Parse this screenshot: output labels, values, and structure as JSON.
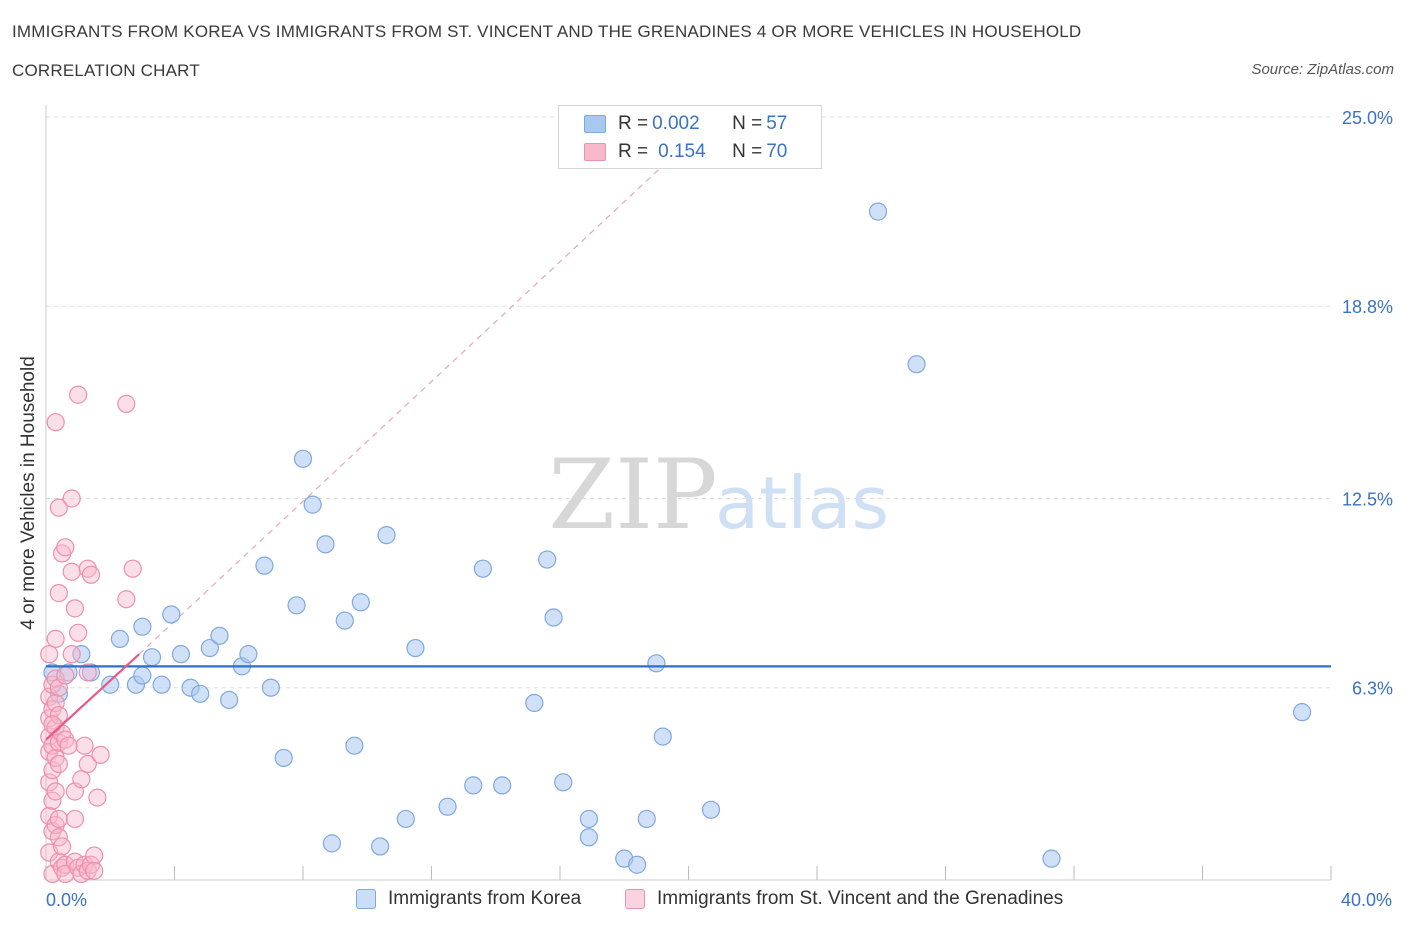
{
  "header": {
    "title": "IMMIGRANTS FROM KOREA VS IMMIGRANTS FROM ST. VINCENT AND THE GRENADINES 4 OR MORE VEHICLES IN HOUSEHOLD",
    "subtitle": "CORRELATION CHART",
    "source": "Source: ZipAtlas.com"
  },
  "watermark": {
    "zip": "ZIP",
    "atlas": "atlas"
  },
  "legend_stats": {
    "korea": {
      "r_label": "R = ",
      "r_value": "0.002",
      "n_label": "N = ",
      "n_value": "57"
    },
    "stvincent": {
      "r_label": "R = ",
      "r_value": "0.154",
      "n_label": "N = ",
      "n_value": "70"
    }
  },
  "colors": {
    "korea_fill": "#a9c8f0",
    "korea_stroke": "#7fa8de",
    "korea_line": "#2f6fc6",
    "stvincent_fill": "#f7b8cb",
    "stvincent_stroke": "#ee8fac",
    "stvincent_line": "#e8588a",
    "grid": "#dddddd",
    "axis_text": "#3a72c4"
  },
  "chart_data": {
    "type": "scatter",
    "title": "IMMIGRANTS FROM KOREA VS IMMIGRANTS FROM ST. VINCENT AND THE GRENADINES 4 OR MORE VEHICLES IN HOUSEHOLD",
    "xlabel": "",
    "ylabel": "4 or more Vehicles in Household",
    "xlim": [
      0,
      40
    ],
    "ylim": [
      0,
      25
    ],
    "x_tick_labels": [
      "0.0%",
      "40.0%"
    ],
    "y_ticks": [
      6.3,
      12.5,
      18.8,
      25.0
    ],
    "y_tick_labels": [
      "6.3%",
      "12.5%",
      "18.8%",
      "25.0%"
    ],
    "grid": true,
    "legend_position": "bottom",
    "series": [
      {
        "name": "Immigrants from Korea",
        "trend": {
          "x": [
            0,
            40
          ],
          "y": [
            7.0,
            7.0
          ]
        },
        "points": [
          [
            0.2,
            6.8
          ],
          [
            0.4,
            6.1
          ],
          [
            0.7,
            6.8
          ],
          [
            1.1,
            7.4
          ],
          [
            1.4,
            6.8
          ],
          [
            2.0,
            6.4
          ],
          [
            2.3,
            7.9
          ],
          [
            2.8,
            6.4
          ],
          [
            3.0,
            6.7
          ],
          [
            3.0,
            8.3
          ],
          [
            3.3,
            7.3
          ],
          [
            3.6,
            6.4
          ],
          [
            3.9,
            8.7
          ],
          [
            4.2,
            7.4
          ],
          [
            4.5,
            6.3
          ],
          [
            4.8,
            6.1
          ],
          [
            5.1,
            7.6
          ],
          [
            5.4,
            8.0
          ],
          [
            5.7,
            5.9
          ],
          [
            6.1,
            7.0
          ],
          [
            6.3,
            7.4
          ],
          [
            6.8,
            10.3
          ],
          [
            7.0,
            6.3
          ],
          [
            7.4,
            4.0
          ],
          [
            7.8,
            9.0
          ],
          [
            8.0,
            13.8
          ],
          [
            8.3,
            12.3
          ],
          [
            8.7,
            11.0
          ],
          [
            8.9,
            1.2
          ],
          [
            9.3,
            8.5
          ],
          [
            9.6,
            4.4
          ],
          [
            9.8,
            9.1
          ],
          [
            10.4,
            1.1
          ],
          [
            10.6,
            11.3
          ],
          [
            11.2,
            2.0
          ],
          [
            11.5,
            7.6
          ],
          [
            12.5,
            2.4
          ],
          [
            13.3,
            3.1
          ],
          [
            13.6,
            10.2
          ],
          [
            14.2,
            3.1
          ],
          [
            15.2,
            5.8
          ],
          [
            15.6,
            10.5
          ],
          [
            15.8,
            8.6
          ],
          [
            16.1,
            3.2
          ],
          [
            16.9,
            1.4
          ],
          [
            16.9,
            2.0
          ],
          [
            17.5,
            24.4
          ],
          [
            18.0,
            0.7
          ],
          [
            18.4,
            0.5
          ],
          [
            18.7,
            2.0
          ],
          [
            19.0,
            7.1
          ],
          [
            19.2,
            4.7
          ],
          [
            20.7,
            2.3
          ],
          [
            25.9,
            21.9
          ],
          [
            27.1,
            16.9
          ],
          [
            31.3,
            0.7
          ],
          [
            39.1,
            5.5
          ]
        ]
      },
      {
        "name": "Immigrants from St. Vincent and the Grenadines",
        "trend": {
          "x": [
            0,
            2.9
          ],
          "y": [
            4.6,
            7.4
          ]
        },
        "trend_dashed": {
          "x": [
            2.9,
            19.3
          ],
          "y": [
            7.4,
            23.5
          ]
        },
        "points": [
          [
            0.1,
            7.4
          ],
          [
            0.1,
            6.0
          ],
          [
            0.1,
            5.3
          ],
          [
            0.1,
            4.7
          ],
          [
            0.1,
            4.2
          ],
          [
            0.1,
            3.2
          ],
          [
            0.1,
            2.1
          ],
          [
            0.1,
            0.9
          ],
          [
            0.2,
            6.4
          ],
          [
            0.2,
            5.6
          ],
          [
            0.2,
            4.4
          ],
          [
            0.2,
            3.6
          ],
          [
            0.2,
            2.6
          ],
          [
            0.2,
            1.6
          ],
          [
            0.2,
            0.2
          ],
          [
            0.3,
            7.9
          ],
          [
            0.3,
            6.6
          ],
          [
            0.3,
            5.8
          ],
          [
            0.3,
            5.0
          ],
          [
            0.3,
            4.0
          ],
          [
            0.3,
            2.9
          ],
          [
            0.3,
            1.8
          ],
          [
            0.3,
            15.0
          ],
          [
            0.4,
            12.2
          ],
          [
            0.4,
            9.4
          ],
          [
            0.4,
            6.3
          ],
          [
            0.4,
            5.4
          ],
          [
            0.4,
            4.5
          ],
          [
            0.4,
            3.8
          ],
          [
            0.4,
            2.0
          ],
          [
            0.4,
            1.4
          ],
          [
            0.4,
            0.6
          ],
          [
            0.5,
            10.7
          ],
          [
            0.5,
            4.8
          ],
          [
            0.5,
            1.1
          ],
          [
            0.5,
            0.4
          ],
          [
            0.6,
            10.9
          ],
          [
            0.6,
            6.7
          ],
          [
            0.6,
            4.6
          ],
          [
            0.6,
            0.5
          ],
          [
            0.6,
            0.2
          ],
          [
            0.8,
            12.5
          ],
          [
            0.8,
            10.1
          ],
          [
            0.8,
            7.4
          ],
          [
            0.9,
            8.9
          ],
          [
            0.9,
            2.9
          ],
          [
            0.9,
            0.6
          ],
          [
            1.0,
            15.9
          ],
          [
            1.0,
            8.1
          ],
          [
            1.0,
            0.4
          ],
          [
            1.1,
            3.3
          ],
          [
            1.1,
            0.2
          ],
          [
            1.2,
            4.4
          ],
          [
            1.2,
            0.5
          ],
          [
            1.3,
            10.2
          ],
          [
            1.3,
            6.8
          ],
          [
            1.3,
            3.8
          ],
          [
            1.3,
            0.3
          ],
          [
            1.4,
            10.0
          ],
          [
            1.4,
            0.5
          ],
          [
            1.5,
            0.8
          ],
          [
            1.5,
            0.3
          ],
          [
            1.6,
            2.7
          ],
          [
            1.7,
            4.1
          ],
          [
            2.5,
            15.6
          ],
          [
            2.5,
            9.2
          ],
          [
            2.7,
            10.2
          ],
          [
            0.2,
            5.1
          ],
          [
            0.7,
            4.4
          ],
          [
            0.9,
            2.0
          ]
        ]
      }
    ]
  }
}
